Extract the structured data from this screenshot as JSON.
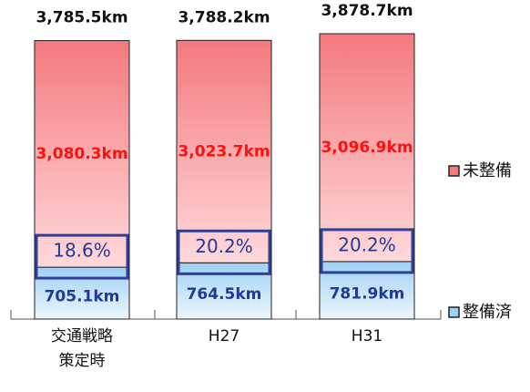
{
  "chart_data": {
    "type": "stacked_bar",
    "categories": [
      "交通戦略\n策定時",
      "H27",
      "H31"
    ],
    "series": [
      {
        "name": "整備済",
        "color": "#9fd0f4",
        "values": [
          705.1,
          764.5,
          781.9
        ],
        "value_labels": [
          "705.1km",
          "764.5km",
          "781.9km"
        ]
      },
      {
        "name": "未整備",
        "color": "#f3797d",
        "values": [
          3080.3,
          3023.7,
          3096.9
        ],
        "value_labels": [
          "3,080.3km",
          "3,023.7km",
          "3,096.9km"
        ]
      }
    ],
    "totals": {
      "values": [
        3785.5,
        3788.2,
        3878.7
      ],
      "value_labels": [
        "3,785.5km",
        "3,788.2km",
        "3,878.7km"
      ]
    },
    "shares": {
      "values": [
        18.6,
        20.2,
        20.2
      ],
      "value_labels": [
        "18.6%",
        "20.2%",
        "20.2%"
      ]
    }
  }
}
